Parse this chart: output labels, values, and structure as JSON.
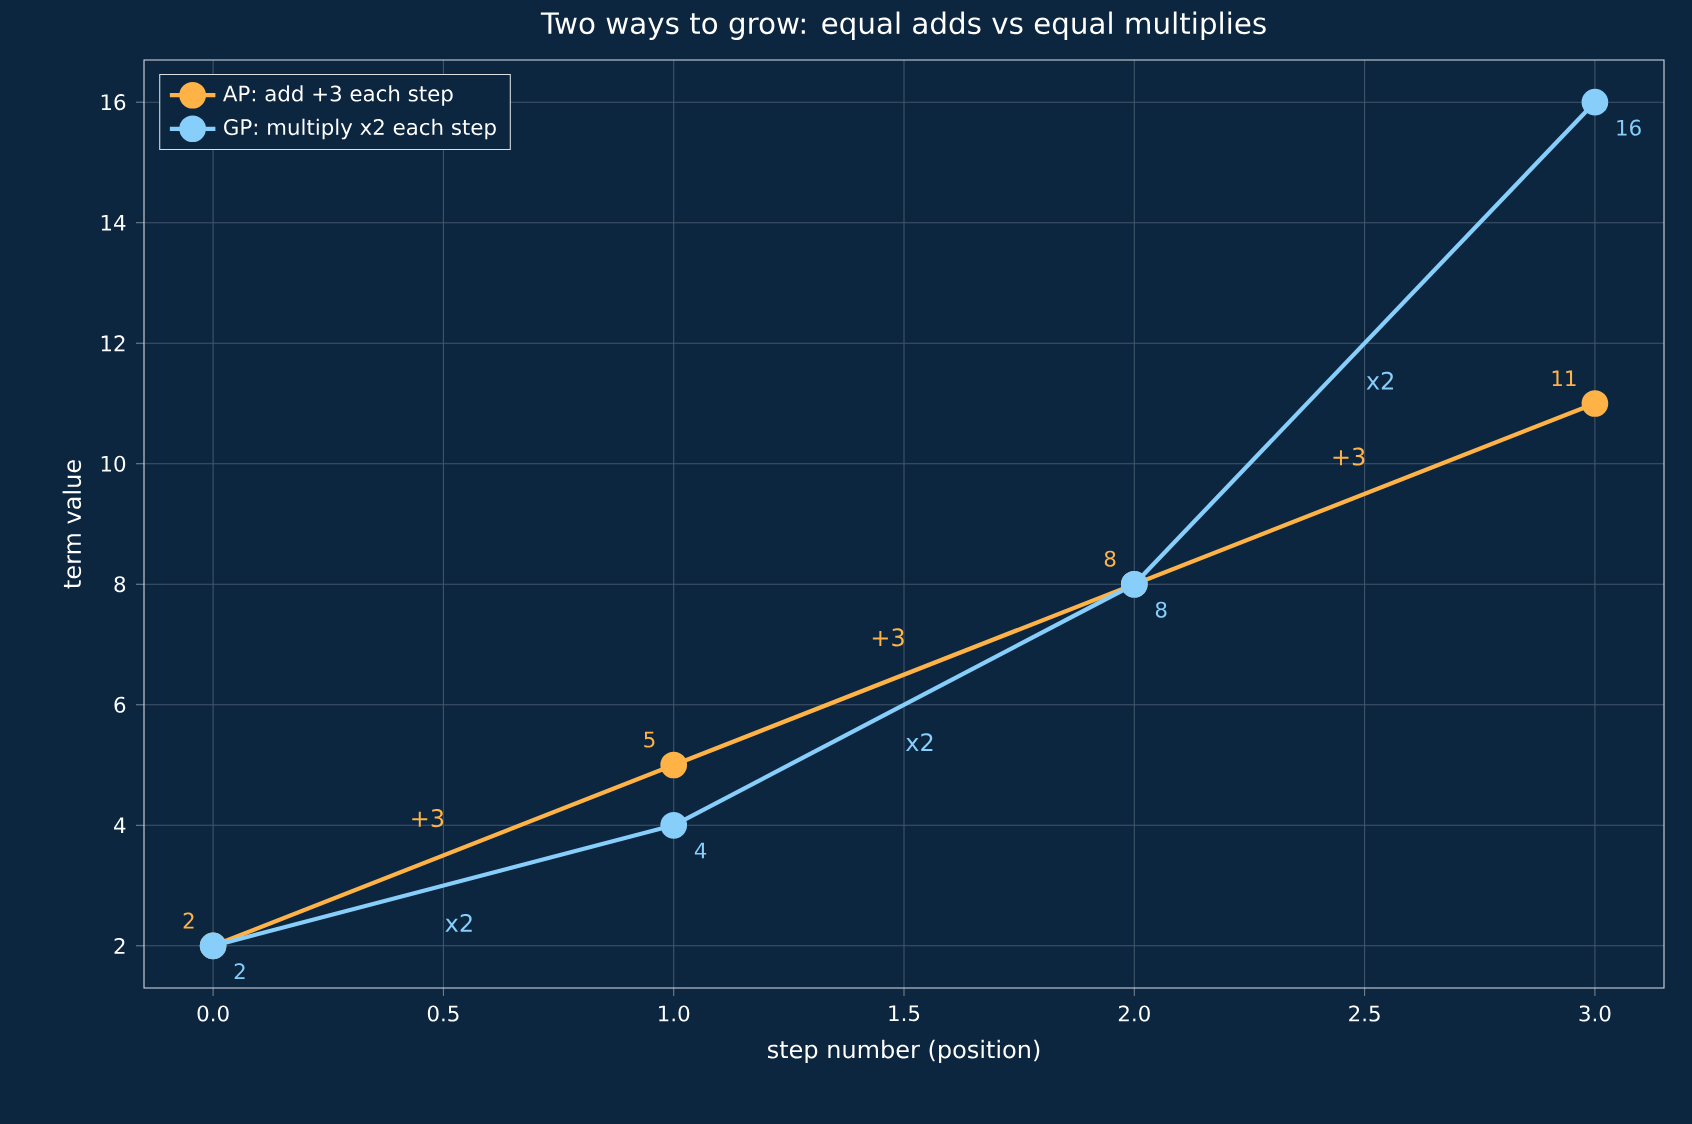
{
  "chart_data": {
    "type": "line",
    "title": "Two ways to grow: equal adds vs equal multiplies",
    "xlabel": "step number (position)",
    "ylabel": "term value",
    "x": [
      0,
      1,
      2,
      3
    ],
    "series": [
      {
        "name": "AP: add +3 each step",
        "color": "#ffb347",
        "values": [
          2,
          5,
          8,
          11
        ]
      },
      {
        "name": "GP: multiply x2 each step",
        "color": "#87cefa",
        "values": [
          2,
          4,
          8,
          16
        ]
      }
    ],
    "xlim": [
      -0.15,
      3.15
    ],
    "ylim": [
      1.3,
      16.7
    ],
    "xticks": [
      {
        "value": 0,
        "label": "0.0"
      },
      {
        "value": 0.5,
        "label": "0.5"
      },
      {
        "value": 1,
        "label": "1.0"
      },
      {
        "value": 1.5,
        "label": "1.5"
      },
      {
        "value": 2,
        "label": "2.0"
      },
      {
        "value": 2.5,
        "label": "2.5"
      },
      {
        "value": 3,
        "label": "3.0"
      }
    ],
    "yticks": [
      2,
      4,
      6,
      8,
      10,
      12,
      14,
      16
    ],
    "annotations": [
      "+3",
      "+3",
      "+3",
      "x2",
      "x2",
      "x2"
    ],
    "data_labels": true,
    "grid": true,
    "legend": "top left",
    "marker": "circle",
    "line_style": "solid"
  }
}
